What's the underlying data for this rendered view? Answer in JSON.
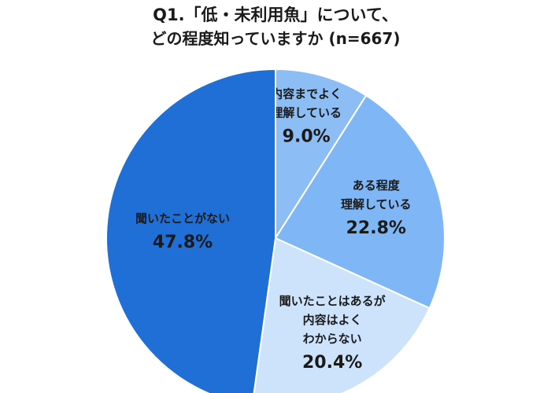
{
  "chart_data": {
    "type": "pie",
    "title_line1": "Q1.「低・未利用魚」について、",
    "title_line2": "どの程度知っていますか (n=667)",
    "slices": [
      {
        "label": [
          "内容までよく",
          "理解している"
        ],
        "value": 9.0,
        "display": "9.0%",
        "color": "#8cbdf5"
      },
      {
        "label": [
          "ある程度",
          "理解している"
        ],
        "value": 22.8,
        "display": "22.8%",
        "color": "#7fb6f6"
      },
      {
        "label": [
          "聞いたことはあるが",
          "内容はよく",
          "わからない"
        ],
        "value": 20.4,
        "display": "20.4%",
        "color": "#cde3fb"
      },
      {
        "label": [
          "聞いたことがない"
        ],
        "value": 47.8,
        "display": "47.8%",
        "color": "#1f6fd6"
      }
    ]
  }
}
